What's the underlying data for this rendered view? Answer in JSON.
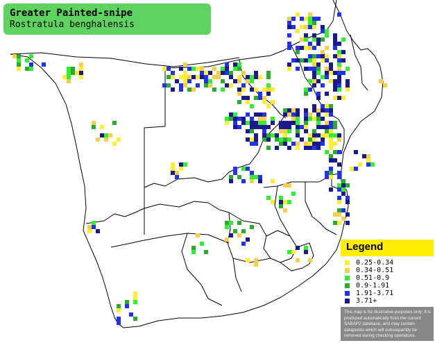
{
  "map": {
    "title": "Greater Painted-snipe",
    "subtitle": "Rostratula benghalensis",
    "colors": {
      "background": "#ffffff",
      "title_box": "#5fd35f",
      "border": "#000000",
      "legend_header": "#ffee00",
      "legend_panel": "#888888"
    }
  },
  "legend": {
    "title": "Legend",
    "items": [
      {
        "label": "0.25-0.34",
        "color": "#ffee33"
      },
      {
        "label": "0.34-0.51",
        "color": "#f5d04a"
      },
      {
        "label": "0.51-0.9",
        "color": "#33ee33"
      },
      {
        "label": "0.9-1.91",
        "color": "#2eaa2e"
      },
      {
        "label": "1.91-3.71",
        "color": "#2233ee"
      },
      {
        "label": "3.71+",
        "color": "#1a1a8c"
      }
    ],
    "note": "This map is for illustrative purposes only; it is produced automatically from the current SABAP2 database, and may contain datapoints which will subsequently be removed during checking operations."
  }
}
